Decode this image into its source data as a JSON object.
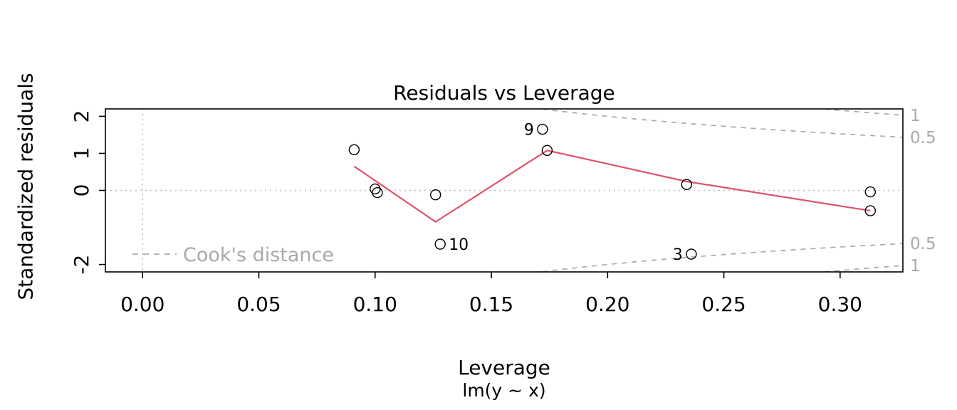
{
  "chart_data": {
    "type": "scatter",
    "title": "Residuals vs Leverage",
    "xlabel": "Leverage",
    "subtitle": "lm(y ~ x)",
    "ylabel": "Standardized residuals",
    "xlim": [
      -0.016,
      0.327
    ],
    "ylim": [
      -2.2,
      2.2
    ],
    "grid": false,
    "legend_position": "bottom-left-inside",
    "x_ticks": [
      {
        "v": 0.0,
        "label": "0.00"
      },
      {
        "v": 0.05,
        "label": "0.05"
      },
      {
        "v": 0.1,
        "label": "0.10"
      },
      {
        "v": 0.15,
        "label": "0.15"
      },
      {
        "v": 0.2,
        "label": "0.20"
      },
      {
        "v": 0.25,
        "label": "0.25"
      },
      {
        "v": 0.3,
        "label": "0.30"
      }
    ],
    "y_ticks": [
      {
        "v": -2,
        "label": "-2"
      },
      {
        "v": 0,
        "label": "0"
      },
      {
        "v": 1,
        "label": "1"
      },
      {
        "v": 2,
        "label": "2"
      }
    ],
    "points": [
      {
        "x": 0.091,
        "y": 1.1
      },
      {
        "x": 0.1,
        "y": 0.04
      },
      {
        "x": 0.101,
        "y": -0.06
      },
      {
        "x": 0.126,
        "y": -0.12
      },
      {
        "x": 0.128,
        "y": -1.45,
        "label": "10",
        "side": "right"
      },
      {
        "x": 0.172,
        "y": 1.65,
        "label": "9",
        "side": "left"
      },
      {
        "x": 0.174,
        "y": 1.08
      },
      {
        "x": 0.234,
        "y": 0.16
      },
      {
        "x": 0.236,
        "y": -1.72,
        "label": "3",
        "side": "left"
      },
      {
        "x": 0.313,
        "y": -0.04
      },
      {
        "x": 0.313,
        "y": -0.55
      }
    ],
    "smooth_line": [
      [
        0.091,
        0.65
      ],
      [
        0.126,
        -0.85
      ],
      [
        0.174,
        1.08
      ],
      [
        0.234,
        0.24
      ],
      [
        0.313,
        -0.55
      ]
    ],
    "reference_lines": {
      "horizontal_at": 0,
      "vertical_at": 0
    },
    "cooks_contours": [
      {
        "level": 0.5,
        "label": "0.5"
      },
      {
        "level": 1,
        "label": "1"
      }
    ],
    "legend_label": "Cook's distance",
    "colors": {
      "smooth_line": "#df536b",
      "contour": "#a9a9a9",
      "reference": "#bcbcbc",
      "point_stroke": "#000000",
      "gray_text": "#a9a9a9"
    }
  }
}
